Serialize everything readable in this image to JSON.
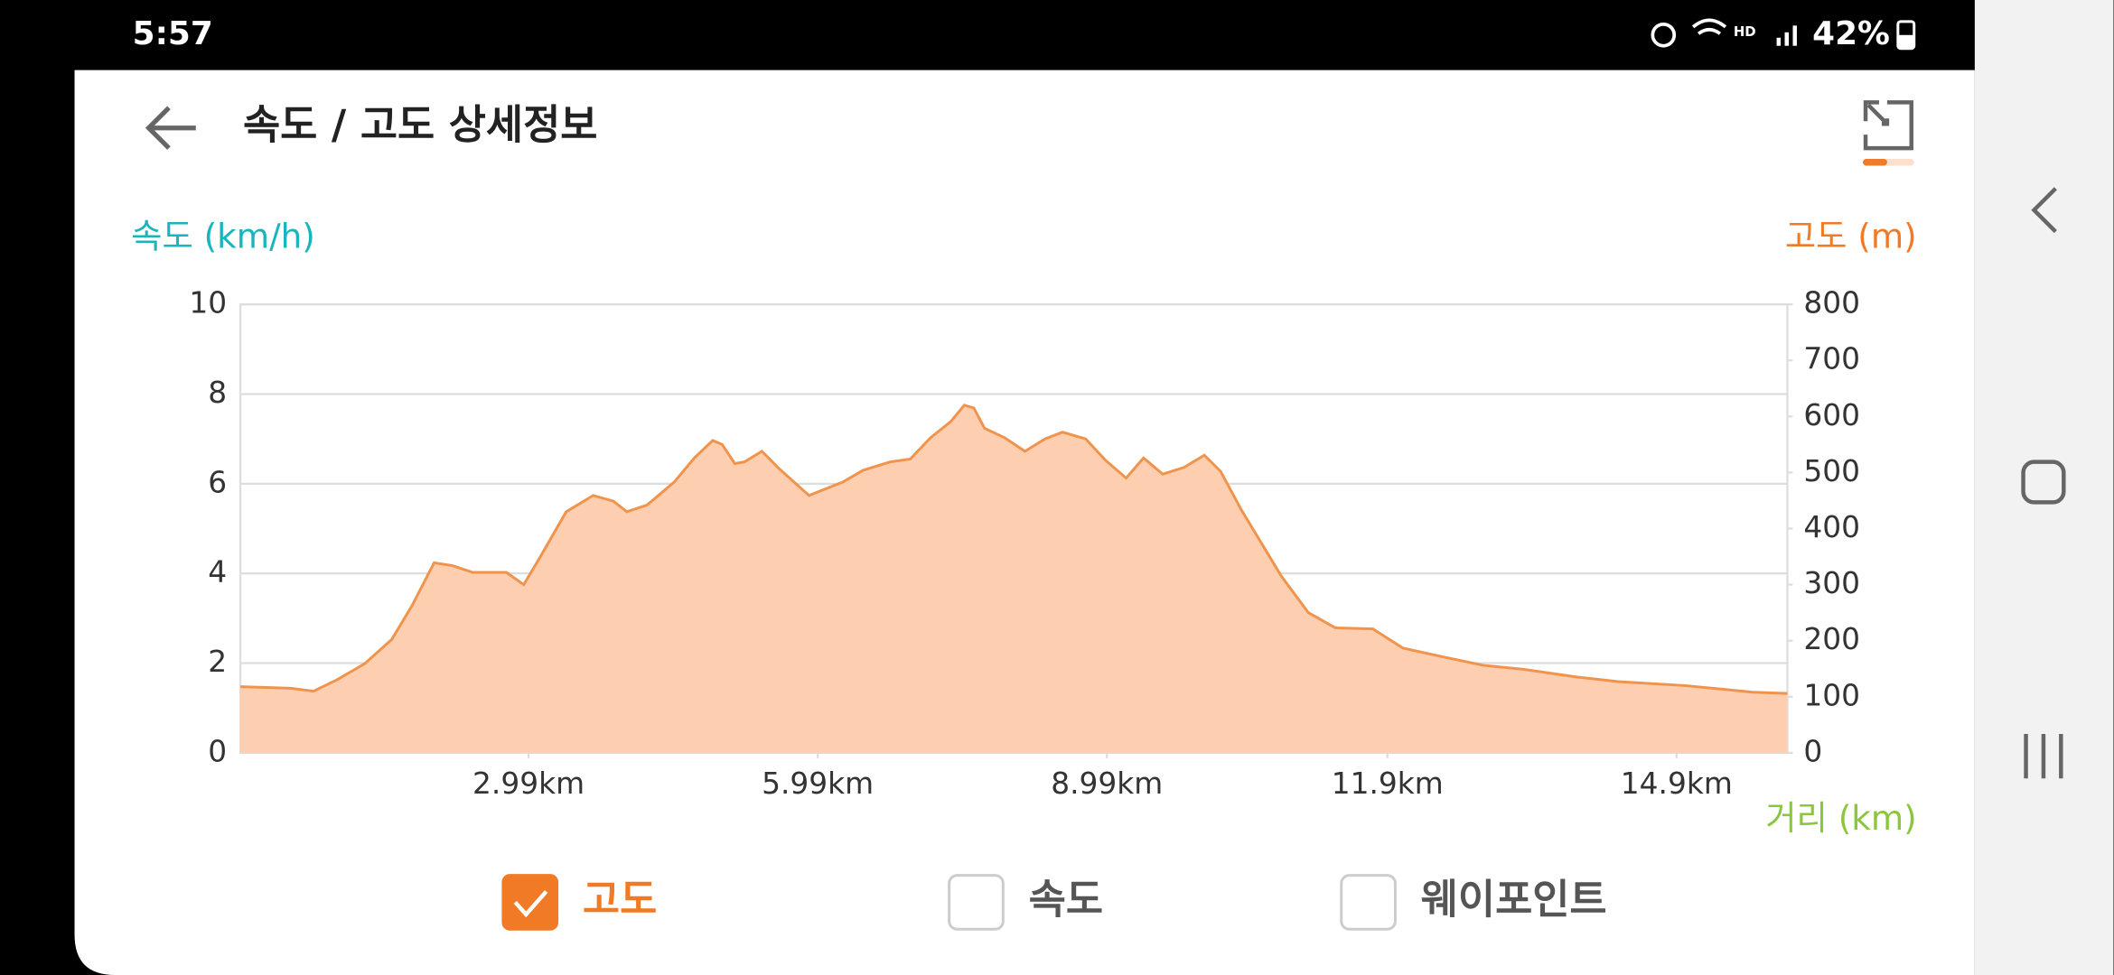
{
  "status_bar": {
    "time": "5:57",
    "battery": "42%"
  },
  "header": {
    "title": "속도 / 고도 상세정보"
  },
  "chart_data": {
    "type": "area",
    "y_label": "속도 (km/h)",
    "y2_label": "고도 (m)",
    "x_label": "거리 (km)",
    "xlim": [
      0,
      16.05
    ],
    "xticks": [
      {
        "value": 2.99,
        "label": "2.99km"
      },
      {
        "value": 5.99,
        "label": "5.99km"
      },
      {
        "value": 8.99,
        "label": "8.99km"
      },
      {
        "value": 11.9,
        "label": "11.9km"
      },
      {
        "value": 14.9,
        "label": "14.9km"
      }
    ],
    "ylim": [
      0,
      10
    ],
    "yticks": [
      0,
      2,
      4,
      6,
      8,
      10
    ],
    "y2lim": [
      0,
      800
    ],
    "y2ticks": [
      0,
      100,
      200,
      300,
      400,
      500,
      600,
      700,
      800
    ],
    "grid": true,
    "series": [
      {
        "color": "#f0944d",
        "fill": "#fdcfb0",
        "axis": "y2",
        "x": [
          0,
          0.52,
          0.76,
          1.0,
          1.29,
          1.57,
          1.78,
          2.01,
          2.2,
          2.41,
          2.76,
          2.94,
          3.1,
          3.38,
          3.66,
          3.87,
          4.01,
          4.22,
          4.5,
          4.71,
          4.9,
          5.0,
          5.13,
          5.23,
          5.41,
          5.59,
          5.9,
          6.25,
          6.46,
          6.74,
          6.95,
          7.16,
          7.37,
          7.51,
          7.61,
          7.72,
          7.93,
          8.14,
          8.35,
          8.53,
          8.77,
          8.98,
          9.19,
          9.37,
          9.57,
          9.79,
          10.0,
          10.17,
          10.38,
          10.8,
          11.08,
          11.36,
          11.75,
          12.06,
          12.48,
          12.9,
          13.31,
          13.87,
          14.29,
          14.99,
          15.69,
          16.05
        ],
        "values": [
          118,
          115,
          110,
          130,
          159,
          202,
          262,
          339,
          334,
          322,
          322,
          300,
          346,
          430,
          459,
          449,
          430,
          442,
          483,
          526,
          557,
          550,
          516,
          519,
          538,
          507,
          459,
          483,
          504,
          519,
          524,
          562,
          591,
          620,
          615,
          579,
          562,
          538,
          560,
          572,
          560,
          521,
          490,
          526,
          497,
          509,
          531,
          502,
          435,
          315,
          250,
          223,
          221,
          187,
          171,
          156,
          149,
          135,
          127,
          120,
          108,
          106
        ]
      }
    ]
  },
  "toggles": [
    {
      "label": "고도",
      "checked": true
    },
    {
      "label": "속도",
      "checked": false
    },
    {
      "label": "웨이포인트",
      "checked": false
    }
  ]
}
